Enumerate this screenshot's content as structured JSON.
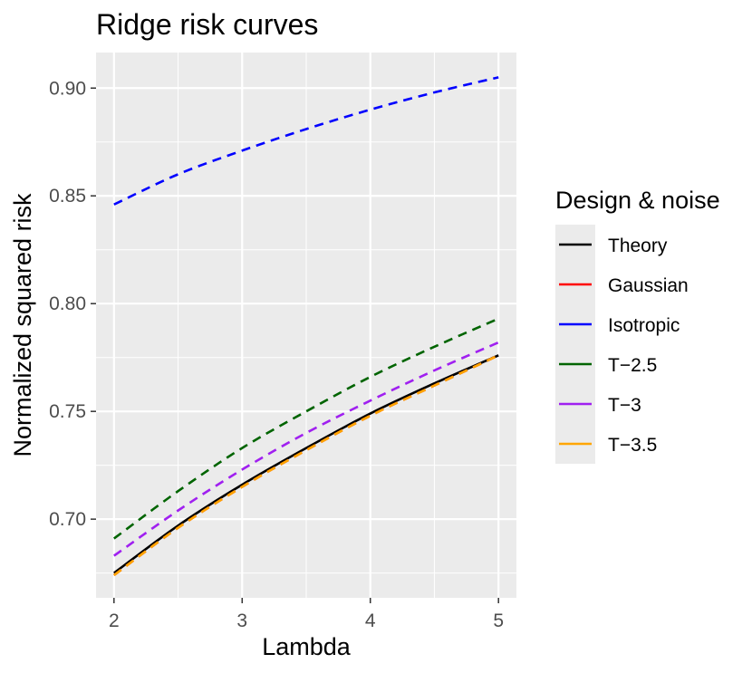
{
  "chart_data": {
    "type": "line",
    "title": "Ridge risk curves",
    "xlabel": "Lambda",
    "ylabel": "Normalized squared risk",
    "xlim": [
      1.86,
      5.14
    ],
    "ylim": [
      0.6635,
      0.9165
    ],
    "x_ticks": [
      2,
      3,
      4,
      5
    ],
    "x_tick_labels": [
      "2",
      "3",
      "4",
      "5"
    ],
    "y_ticks": [
      0.7,
      0.75,
      0.8,
      0.85,
      0.9
    ],
    "y_tick_labels": [
      "0.70",
      "0.75",
      "0.80",
      "0.85",
      "0.90"
    ],
    "grid": true,
    "legend_title": "Design & noise",
    "legend_position": "right",
    "x": [
      2,
      2.5,
      3,
      3.5,
      4,
      4.5,
      5
    ],
    "series": [
      {
        "name": "Theory",
        "color": "#000000",
        "dash": "solid",
        "values": [
          0.675,
          0.697,
          0.716,
          0.733,
          0.749,
          0.763,
          0.776
        ]
      },
      {
        "name": "Gaussian",
        "color": "#ff0000",
        "dash": "dashed",
        "values": [
          0.674,
          0.696,
          0.715,
          0.732,
          0.748,
          0.762,
          0.776
        ]
      },
      {
        "name": "Isotropic",
        "color": "#0000ff",
        "dash": "dashed",
        "values": [
          0.846,
          0.86,
          0.871,
          0.881,
          0.89,
          0.898,
          0.905
        ]
      },
      {
        "name": "T−2.5",
        "color": "#006400",
        "dash": "dashed",
        "values": [
          0.691,
          0.713,
          0.733,
          0.75,
          0.766,
          0.78,
          0.793
        ]
      },
      {
        "name": "T−3",
        "color": "#a020f0",
        "dash": "dashed",
        "values": [
          0.683,
          0.704,
          0.723,
          0.74,
          0.755,
          0.769,
          0.782
        ]
      },
      {
        "name": "T−3.5",
        "color": "#ffa500",
        "dash": "dashed",
        "values": [
          0.674,
          0.696,
          0.715,
          0.732,
          0.748,
          0.762,
          0.776
        ]
      }
    ]
  }
}
